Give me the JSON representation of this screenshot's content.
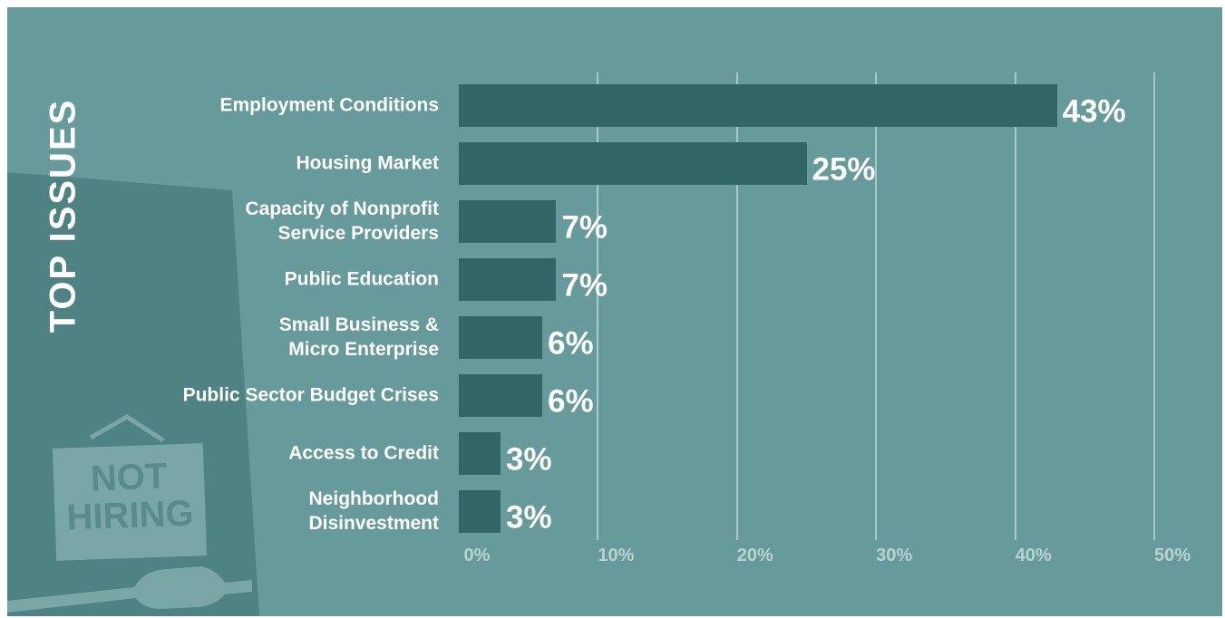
{
  "chart_data": {
    "type": "barh",
    "title": "TOP ISSUES",
    "categories": [
      "Employment Conditions",
      "Housing Market",
      "Capacity of Nonprofit\nService Providers",
      "Public Education",
      "Small Business &\nMicro Enterprise",
      "Public Sector Budget Crises",
      "Access to Credit",
      "Neighborhood\nDisinvestment"
    ],
    "values": [
      43,
      25,
      7,
      7,
      6,
      6,
      3,
      3
    ],
    "value_labels": [
      "43%",
      "25%",
      "7%",
      "7%",
      "6%",
      "6%",
      "3%",
      "3%"
    ],
    "color": "#326565",
    "xlim": [
      0,
      50
    ],
    "xticks": [
      {
        "value": 0,
        "label": "0%"
      },
      {
        "value": 10,
        "label": "10%"
      },
      {
        "value": 20,
        "label": "20%"
      },
      {
        "value": 30,
        "label": "30%"
      },
      {
        "value": 40,
        "label": "40%"
      },
      {
        "value": 50,
        "label": "50%"
      }
    ],
    "grid": true
  },
  "sign": {
    "lines": [
      "NOT",
      "HIRING"
    ]
  }
}
